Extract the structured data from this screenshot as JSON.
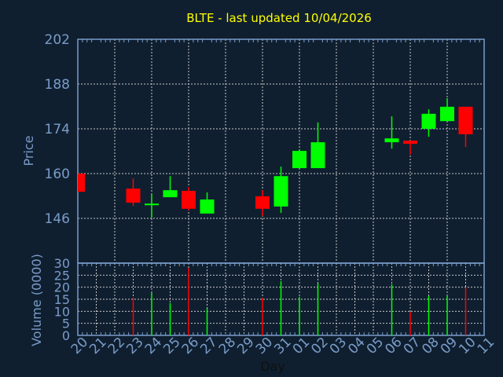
{
  "chart_data": {
    "type": "candlestick",
    "title": "BLTE - last updated 10/04/2026",
    "xlabel": "Day",
    "ylabel": "Price",
    "volume_ylabel": "Volume (0000)",
    "ylim": [
      132,
      202
    ],
    "yticks": [
      146,
      160,
      174,
      188,
      202
    ],
    "volume_ylim": [
      0,
      30
    ],
    "volume_yticks": [
      0,
      5,
      10,
      15,
      20,
      25,
      30
    ],
    "grid": true,
    "x": [
      "20",
      "21",
      "22",
      "23",
      "24",
      "25",
      "26",
      "27",
      "28",
      "29",
      "30",
      "31",
      "01",
      "02",
      "03",
      "04",
      "05",
      "06",
      "07",
      "08",
      "09",
      "10",
      "11"
    ],
    "candles": [
      {
        "day": "20",
        "open": 160.0,
        "high": 160.0,
        "low": 154.3,
        "close": 154.3,
        "volume": null
      },
      {
        "day": "23",
        "open": 155.3,
        "high": 158.5,
        "low": 149.9,
        "close": 150.9,
        "volume": 15.6
      },
      {
        "day": "24",
        "open": 150.2,
        "high": 153.6,
        "low": 146.2,
        "close": 150.6,
        "volume": 17.6
      },
      {
        "day": "25",
        "open": 152.6,
        "high": 159.2,
        "low": 152.6,
        "close": 154.8,
        "volume": 13.4
      },
      {
        "day": "26",
        "open": 154.6,
        "high": 155.8,
        "low": 148.4,
        "close": 149.0,
        "volume": 28.0
      },
      {
        "day": "27",
        "open": 147.5,
        "high": 154.1,
        "low": 147.5,
        "close": 151.9,
        "volume": 11.1
      },
      {
        "day": "30",
        "open": 152.9,
        "high": 154.8,
        "low": 146.7,
        "close": 149.0,
        "volume": 15.6
      },
      {
        "day": "31",
        "open": 149.7,
        "high": 162.2,
        "low": 147.7,
        "close": 159.2,
        "volume": 22.5
      },
      {
        "day": "01",
        "open": 161.7,
        "high": 167.6,
        "low": 161.7,
        "close": 167.1,
        "volume": 16.0
      },
      {
        "day": "02",
        "open": 161.7,
        "high": 176.0,
        "low": 161.7,
        "close": 169.8,
        "volume": 21.5
      },
      {
        "day": "06",
        "open": 169.8,
        "high": 177.9,
        "low": 167.8,
        "close": 171.0,
        "volume": 21.2
      },
      {
        "day": "07",
        "open": 170.3,
        "high": 170.3,
        "low": 165.9,
        "close": 169.3,
        "volume": 9.8
      },
      {
        "day": "08",
        "open": 174.0,
        "high": 180.1,
        "low": 171.5,
        "close": 178.7,
        "volume": 16.3
      },
      {
        "day": "09",
        "open": 176.4,
        "high": 183.6,
        "low": 176.4,
        "close": 180.9,
        "volume": 16.3
      },
      {
        "day": "10",
        "open": 180.9,
        "high": 180.9,
        "low": 168.3,
        "close": 172.3,
        "volume": 19.9
      }
    ],
    "colors": {
      "up": "#00ff00",
      "down": "#ff0000",
      "axis": "#7a9cc8",
      "grid": "#c8c8c8",
      "title": "#ffff00",
      "xlabel": "#101010"
    }
  }
}
